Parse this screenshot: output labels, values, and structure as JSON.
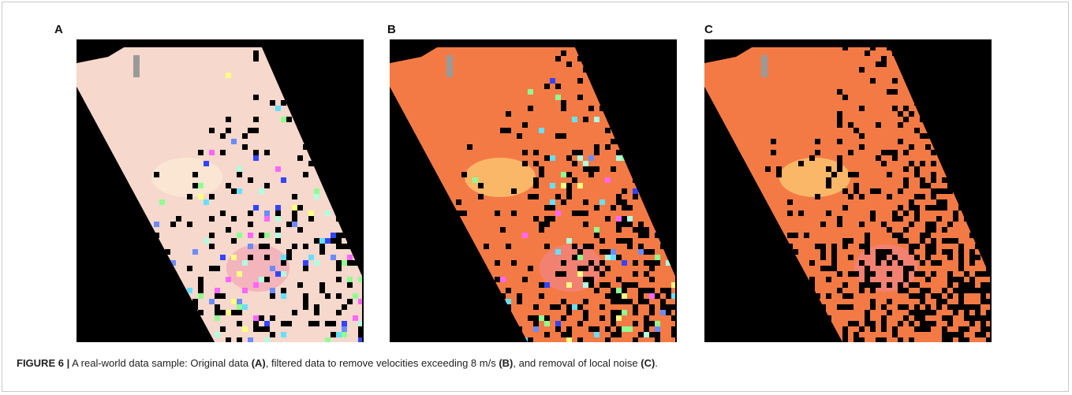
{
  "figure": {
    "panels": [
      {
        "label": "A"
      },
      {
        "label": "B"
      },
      {
        "label": "C"
      }
    ],
    "caption": [
      "FIGURE 6 |",
      " A real-world data sample: Original data ",
      "(A)",
      ", filtered data to remove velocities exceeding 8 m/s ",
      "(B)",
      ", and removal of local noise ",
      "(C)",
      "."
    ]
  }
}
